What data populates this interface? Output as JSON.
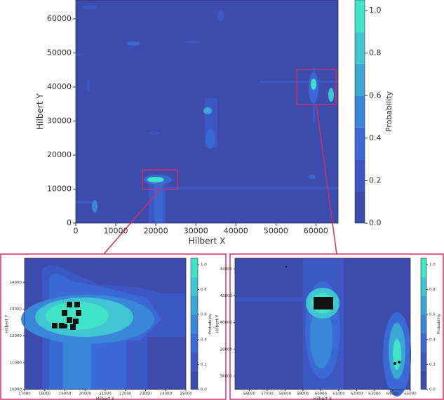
{
  "chart_data": [
    {
      "type": "contour",
      "xlabel": "Hilbert X",
      "ylabel": "Hilbert Y",
      "xlim": [
        0,
        65536
      ],
      "ylim": [
        0,
        65536
      ],
      "xticks": [
        0,
        10000,
        20000,
        30000,
        40000,
        50000,
        60000
      ],
      "yticks": [
        0,
        10000,
        20000,
        30000,
        40000,
        50000,
        60000
      ],
      "colorbar": {
        "label": "Probability",
        "lim": [
          0,
          1.05
        ],
        "ticks": [
          {
            "value": 0,
            "label": "0.0"
          },
          0.2,
          0.4,
          0.6,
          0.8,
          {
            "value": 1,
            "label": "1.0"
          }
        ],
        "colors": [
          "#3b4cac",
          "#3d57c4",
          "#3b6ad6",
          "#3a86d8",
          "#3ca6d6",
          "#3fc6d0",
          "#41e3c9"
        ]
      }
    },
    {
      "type": "contour",
      "xlabel": "Hilbert X",
      "ylabel": "Hilbert Y",
      "xlim": [
        17000,
        25000
      ],
      "ylim": [
        10000,
        14900
      ],
      "xticks": [
        17000,
        18000,
        19000,
        20000,
        21000,
        22000,
        23000,
        24000,
        25000
      ],
      "yticks": [
        10000,
        11000,
        12000,
        13000,
        14000
      ],
      "colorbar": {
        "label": "Probability",
        "lim": [
          0,
          1.05
        ],
        "ticks": [
          {
            "value": 0,
            "label": "0.0"
          },
          0.2,
          0.4,
          0.6,
          0.8,
          {
            "value": 1,
            "label": "1.0"
          }
        ],
        "colors": [
          "#3b4cac",
          "#3d57c4",
          "#3b6ad6",
          "#3a86d8",
          "#3ca6d6",
          "#3fc6d0",
          "#41e3c9"
        ]
      }
    },
    {
      "type": "contour",
      "xlabel": "Hilbert X",
      "ylabel": "Hilbert Y",
      "xlim": [
        55200,
        65000
      ],
      "ylim": [
        35000,
        44800
      ],
      "xticks": [
        56000,
        57000,
        58000,
        59000,
        60000,
        61000,
        62000,
        63000,
        64000,
        65000
      ],
      "yticks": [
        36000,
        38000,
        40000,
        42000,
        44000
      ],
      "colorbar": {
        "label": "Probability",
        "lim": [
          0,
          1.05
        ],
        "ticks": [
          {
            "value": 0,
            "label": "0.0"
          },
          0.2,
          0.4,
          0.6,
          0.8,
          {
            "value": 1,
            "label": "1.0"
          }
        ],
        "colors": [
          "#3b4cac",
          "#3d57c4",
          "#3b6ad6",
          "#3a86d8",
          "#3ca6d6",
          "#3fc6d0",
          "#41e3c9"
        ]
      }
    }
  ]
}
